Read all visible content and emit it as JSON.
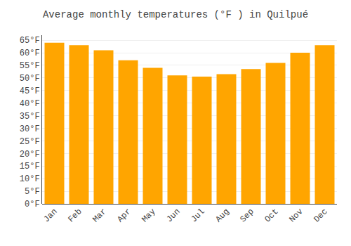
{
  "chart_data": {
    "type": "bar",
    "title": "Average monthly temperatures (°F ) in Quilpué",
    "categories": [
      "Jan",
      "Feb",
      "Mar",
      "Apr",
      "May",
      "Jun",
      "Jul",
      "Aug",
      "Sep",
      "Oct",
      "Nov",
      "Dec"
    ],
    "values": [
      64.0,
      63.0,
      61.0,
      57.0,
      54.0,
      51.0,
      50.5,
      51.5,
      53.5,
      56.0,
      60.0,
      63.0
    ],
    "color": "#FFA500",
    "ylim": [
      0,
      67
    ],
    "yticks": [
      {
        "value": 0,
        "label": "0°F"
      },
      {
        "value": 5,
        "label": "5°F"
      },
      {
        "value": 10,
        "label": "10°F"
      },
      {
        "value": 15,
        "label": "15°F"
      },
      {
        "value": 20,
        "label": "20°F"
      },
      {
        "value": 25,
        "label": "25°F"
      },
      {
        "value": 30,
        "label": "30°F"
      },
      {
        "value": 35,
        "label": "35°F"
      },
      {
        "value": 40,
        "label": "40°F"
      },
      {
        "value": 45,
        "label": "45°F"
      },
      {
        "value": 50,
        "label": "50°F"
      },
      {
        "value": 55,
        "label": "55°F"
      },
      {
        "value": 60,
        "label": "60°F"
      },
      {
        "value": 65,
        "label": "65°F"
      }
    ],
    "grid": true
  }
}
